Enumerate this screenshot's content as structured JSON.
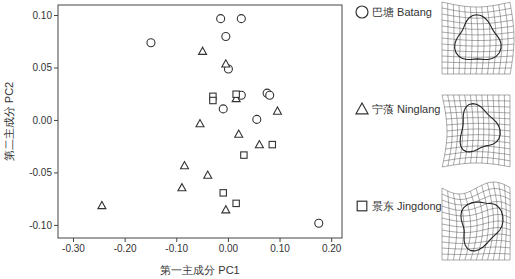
{
  "chart_data": {
    "type": "scatter",
    "x_label": "第一主成分 PC1",
    "y_label": "第二主成分 PC2",
    "xlim": [
      -0.33,
      0.22
    ],
    "ylim": [
      -0.112,
      0.11
    ],
    "xticks": [
      {
        "value": -0.3,
        "label": "-0.30"
      },
      {
        "value": -0.2,
        "label": "-0.20"
      },
      {
        "value": -0.1,
        "label": "-0.10"
      },
      {
        "value": 0,
        "label": "0.00"
      },
      {
        "value": 0.1,
        "label": "0.10"
      },
      {
        "value": 0.2,
        "label": "0.20"
      }
    ],
    "yticks": [
      {
        "value": -0.1,
        "label": "-0.10"
      },
      {
        "value": -0.05,
        "label": "-0.05"
      },
      {
        "value": 0,
        "label": "0.00"
      },
      {
        "value": 0.05,
        "label": "0.05"
      },
      {
        "value": 0.1,
        "label": "0.10"
      }
    ],
    "legend": "right",
    "grid": false,
    "series": [
      {
        "name": "巴塘 Batang",
        "marker": "circle",
        "color": "#333333",
        "x": [
          -0.015,
          0.025,
          -0.005,
          -0.15,
          0.0,
          0.025,
          0.075,
          0.08,
          -0.01,
          0.055,
          0.175
        ],
        "values": [
          0.097,
          0.097,
          0.08,
          0.074,
          0.049,
          0.024,
          0.026,
          0.024,
          0.011,
          0.001,
          -0.098
        ]
      },
      {
        "name": "宁蒗 Ninglang",
        "marker": "triangle",
        "color": "#333333",
        "x": [
          -0.05,
          -0.005,
          0.015,
          0.095,
          -0.055,
          0.02,
          0.06,
          -0.085,
          -0.09,
          -0.04,
          -0.245,
          -0.005
        ],
        "values": [
          0.066,
          0.054,
          0.021,
          0.009,
          -0.003,
          -0.013,
          -0.023,
          -0.043,
          -0.064,
          -0.052,
          -0.081,
          -0.085
        ]
      },
      {
        "name": "景东 Jingdong",
        "marker": "square",
        "color": "#333333",
        "x": [
          -0.03,
          -0.03,
          0.015,
          0.085,
          0.03,
          -0.01,
          0.015
        ],
        "values": [
          0.023,
          0.019,
          0.025,
          -0.023,
          -0.033,
          -0.069,
          -0.079
        ]
      }
    ]
  }
}
